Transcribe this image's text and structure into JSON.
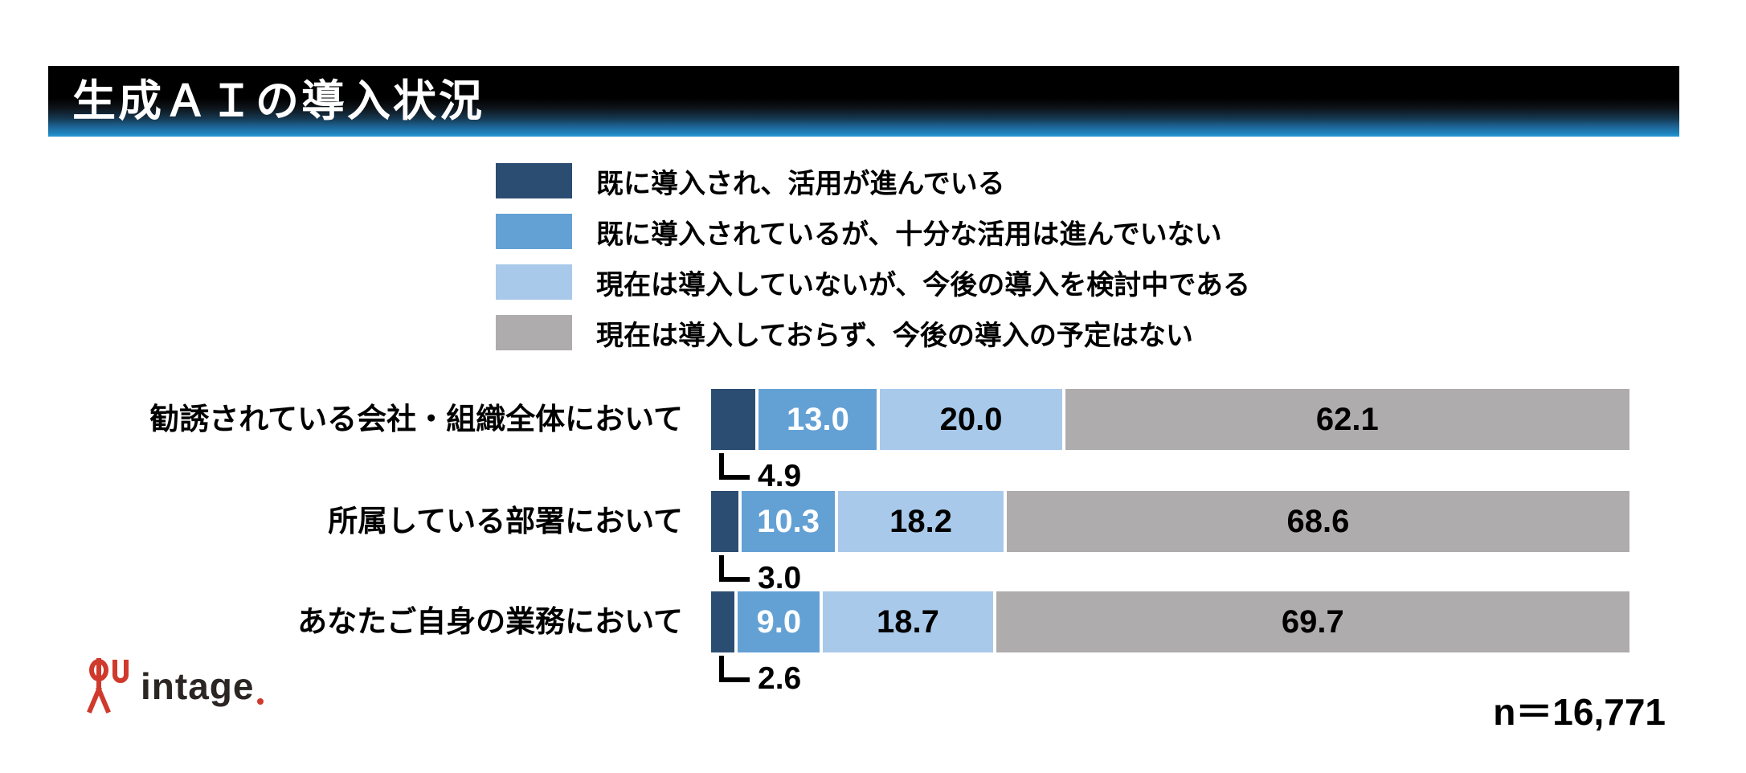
{
  "title": "生成ＡＩの導入状況",
  "title_bar": {
    "bg_top": "#000000",
    "bg_bottom": "#2a9ad6"
  },
  "chart_data": {
    "type": "bar",
    "variant": "horizontal_stacked",
    "unit": "%",
    "xlim": [
      0,
      100
    ],
    "grid": false,
    "legend_position": "top-center",
    "categories": [
      "勧誘されている会社・組織全体において",
      "所属している部署において",
      "あなたご自身の業務において"
    ],
    "series": [
      {
        "name": "既に導入され、活用が進んでいる",
        "color": "#2b4d72",
        "label_color": "#ffffff",
        "values": [
          4.9,
          3.0,
          2.6
        ]
      },
      {
        "name": "既に導入されているが、十分な活用は進んでいない",
        "color": "#63a1d5",
        "label_color": "#ffffff",
        "values": [
          13.0,
          10.3,
          9.0
        ]
      },
      {
        "name": "現在は導入していないが、今後の導入を検討中である",
        "color": "#a9c9ea",
        "label_color": "#000000",
        "values": [
          20.0,
          18.2,
          18.7
        ]
      },
      {
        "name": "現在は導入しておらず、今後の導入の予定はない",
        "color": "#afacad",
        "label_color": "#000000",
        "values": [
          62.1,
          68.6,
          69.7
        ]
      }
    ],
    "value_labels": {
      "decimals": 1,
      "callout_series": 0,
      "in_bar_series": [
        1,
        2,
        3
      ]
    }
  },
  "footer": {
    "sample_size_label": "n＝16,771"
  },
  "logo": {
    "brand": "intage",
    "mark_color": "#cf3a2c",
    "text_color": "#2b2523"
  }
}
